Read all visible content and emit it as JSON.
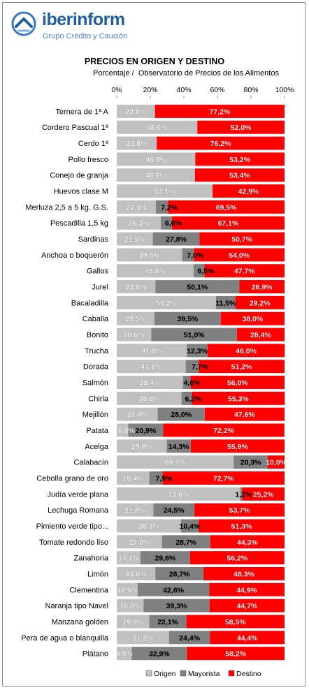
{
  "brand": {
    "name": "iberinform",
    "tagline": "Grupo Crédito y Caución"
  },
  "colors": {
    "origen": "#c0c0c0",
    "mayorista": "#808080",
    "destino": "#ff0000",
    "brand": "#1f5f9e"
  },
  "chart_data": {
    "type": "bar",
    "orientation": "horizontal",
    "stacked": "100%",
    "title": "PRECIOS EN ORIGEN Y DESTINO",
    "subtitle": "Porcentaje /  Observatorio de Precios de los Alimentos",
    "xlim": [
      0,
      100
    ],
    "x_ticks": [
      "0%",
      "20%",
      "40%",
      "60%",
      "80%",
      "100%"
    ],
    "legend": {
      "placement": "bottom",
      "entries": [
        "Origen",
        "Mayorista",
        "Destino"
      ]
    },
    "grid": false,
    "categories": [
      "Ternera de 1ª A",
      "Cordero Pascual 1ª",
      "Cerdo 1ª",
      "Pollo fresco",
      "Conejo de granja",
      "Huevos clase M",
      "Merluza 2,5 a 5 kg. G.S.",
      "Pescadilla 1,5 kg",
      "Sardinas",
      "Anchoa o boquerón",
      "Gallos",
      "Jurel",
      "Bacaladilla",
      "Caballa",
      "Bonito",
      "Trucha",
      "Dorada",
      "Salmón",
      "Chirla",
      "Mejillón",
      "Patata",
      "Acelga",
      "Calabacín",
      "Cebolla grano de oro",
      "Judía verde plana",
      "Lechuga Romana",
      "Pimiento verde tipo...",
      "Tomate redondo liso",
      "Zanahoria",
      "Limón",
      "Clementina",
      "Naranja tipo Navel",
      "Manzana golden",
      "Pera de agua o blanquilla",
      "Plátano"
    ],
    "series": [
      {
        "name": "Origen",
        "values": [
          22.8,
          48.0,
          23.8,
          46.8,
          46.6,
          57.1,
          23.3,
          26.3,
          21.5,
          39.0,
          45.8,
          23.0,
          59.2,
          22.5,
          20.6,
          41.8,
          41.1,
          39.4,
          38.6,
          24.4,
          6.8,
          29.8,
          69.7,
          19.4,
          73.6,
          21.8,
          38.3,
          27.0,
          14.1,
          23.0,
          12.5,
          16.0,
          19.4,
          31.2,
          8.9
        ]
      },
      {
        "name": "Mayorista",
        "values": [
          0,
          0,
          0,
          0,
          0,
          0,
          7.2,
          6.6,
          27.8,
          7.0,
          6.5,
          50.1,
          11.5,
          39.5,
          51.0,
          12.3,
          7.7,
          4.6,
          6.2,
          28.0,
          20.9,
          14.3,
          20.3,
          7.9,
          1.2,
          24.5,
          10.4,
          28.7,
          29.6,
          28.7,
          42.6,
          39.3,
          22.1,
          24.4,
          32.9
        ]
      },
      {
        "name": "Destino",
        "values": [
          77.2,
          52.0,
          76.2,
          53.2,
          53.4,
          42.9,
          69.5,
          67.1,
          50.7,
          54.0,
          47.7,
          26.9,
          29.2,
          38.0,
          28.4,
          46.0,
          51.2,
          56.0,
          55.3,
          47.6,
          72.2,
          55.9,
          10.0,
          72.7,
          25.2,
          53.7,
          51.3,
          44.3,
          56.2,
          48.3,
          44.9,
          44.7,
          58.5,
          44.4,
          58.2
        ]
      }
    ],
    "labels": {
      "Origen": [
        "22,8%",
        "48,0%",
        "23,8%",
        "46,8%",
        "46,6%",
        "57,1%",
        "23,3%",
        "26,3%",
        "21,5%",
        "39,0%",
        "45,8%",
        "23,0%",
        "59,2%",
        "22,5%",
        "20,6%",
        "41,8%",
        "41,1%",
        "39,4%",
        "38,6%",
        "24,4%",
        "6,8%",
        "29,8%",
        "69,7%",
        "19,4%",
        "73,6%",
        "21,8%",
        "38,3%",
        "27,0%",
        "14,1%",
        "23,0%",
        "12,5%",
        "16,0%",
        "19,4%",
        "31,2%",
        "8,9%"
      ],
      "Mayorista": [
        "",
        "",
        "",
        "",
        "",
        "",
        "7,2%",
        "6,6%",
        "27,8%",
        "7,0%",
        "6,5%",
        "50,1%",
        "11,5%",
        "39,5%",
        "51,0%",
        "12,3%",
        "7,7%",
        "4,6%",
        "6,2%",
        "28,0%",
        "20,9%",
        "14,3%",
        "20,3%",
        "7,9%",
        "1,2%",
        "24,5%",
        "10,4%",
        "28,7%",
        "29,6%",
        "28,7%",
        "42,6%",
        "39,3%",
        "22,1%",
        "24,4%",
        "32,9%"
      ],
      "Destino": [
        "77,2%",
        "52,0%",
        "76,2%",
        "53,2%",
        "53,4%",
        "42,9%",
        "69,5%",
        "67,1%",
        "50,7%",
        "54,0%",
        "47,7%",
        "26,9%",
        "29,2%",
        "38,0%",
        "28,4%",
        "46,0%",
        "51,2%",
        "56,0%",
        "55,3%",
        "47,6%",
        "72,2%",
        "55,9%",
        "10,0%",
        "72,7%",
        "25,2%",
        "53,7%",
        "51,3%",
        "44,3%",
        "56,2%",
        "48,3%",
        "44,9%",
        "44,7%",
        "58,5%",
        "44,4%",
        "58,2%"
      ]
    }
  }
}
